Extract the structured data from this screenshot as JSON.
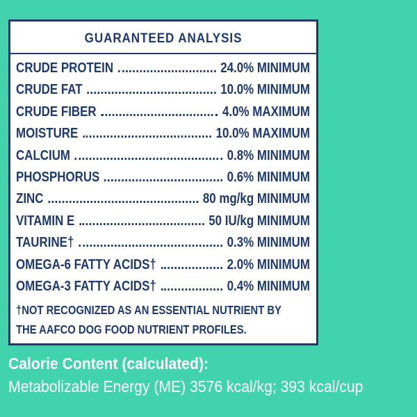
{
  "panel": {
    "title": "GUARANTEED ANALYSIS",
    "rows": [
      {
        "name": "CRUDE PROTEIN",
        "value": "24.0% MINIMUM"
      },
      {
        "name": "CRUDE FAT",
        "value": "10.0% MINIMUM"
      },
      {
        "name": "CRUDE FIBER",
        "value": "4.0% MAXIMUM"
      },
      {
        "name": "MOISTURE",
        "value": "10.0% MAXIMUM"
      },
      {
        "name": "CALCIUM",
        "value": "0.8% MINIMUM"
      },
      {
        "name": "PHOSPHORUS",
        "value": "0.6% MINIMUM"
      },
      {
        "name": "ZINC",
        "value": "80 mg/kg MINIMUM"
      },
      {
        "name": "VITAMIN E",
        "value": "50 IU/kg MINIMUM"
      },
      {
        "name": "TAURINE†",
        "value": "0.3% MINIMUM"
      },
      {
        "name": "OMEGA-6 FATTY ACIDS†",
        "value": "2.0% MINIMUM"
      },
      {
        "name": "OMEGA-3 FATTY ACIDS†",
        "value": "0.4% MINIMUM"
      }
    ],
    "footnote": [
      "†NOT RECOGNIZED AS AN ESSENTIAL NUTRIENT BY",
      "THE  AAFCO DOG FOOD NUTRIENT PROFILES."
    ]
  },
  "calorie": {
    "heading": "Calorie Content (calculated):",
    "text": "Metabolizable Energy (ME) 3576 kcal/kg; 393 kcal/cup"
  }
}
